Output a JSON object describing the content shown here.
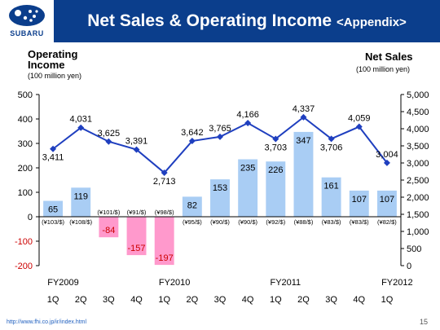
{
  "header": {
    "logo_text": "SUBARU",
    "title": "Net Sales & Operating Income",
    "title_suffix": "<Appendix>",
    "colors": {
      "title_bar": "#0b3e8c",
      "logo": "#0b3e8c"
    }
  },
  "left_axis": {
    "title": "Operating Income",
    "unit": "(100 million yen)"
  },
  "right_axis": {
    "title": "Net Sales",
    "unit": "(100 million yen)"
  },
  "footer": {
    "url": "http://www.fhi.co.jp/ir/index.html",
    "page": "15"
  },
  "chart_data": {
    "type": "bar",
    "categories": [
      "1Q",
      "2Q",
      "3Q",
      "4Q",
      "1Q",
      "2Q",
      "3Q",
      "4Q",
      "1Q",
      "2Q",
      "3Q",
      "4Q",
      "1Q"
    ],
    "fiscal_years": [
      {
        "label": "FY2009",
        "start_index": 0
      },
      {
        "label": "FY2010",
        "start_index": 4
      },
      {
        "label": "FY2011",
        "start_index": 8
      },
      {
        "label": "FY2012",
        "start_index": 12
      }
    ],
    "exchange_rates": [
      "(¥103/$)",
      "(¥108/$)",
      "(¥101/$)",
      "(¥91/$)",
      "(¥98/$)",
      "(¥95/$)",
      "(¥90/$)",
      "(¥90/$)",
      "(¥92/$)",
      "(¥88/$)",
      "(¥83/$)",
      "(¥83/$)",
      "(¥82/$)"
    ],
    "series": [
      {
        "name": "Operating Income",
        "type": "bar",
        "axis": "left",
        "values": [
          65,
          119,
          -84,
          -157,
          -197,
          82,
          153,
          235,
          226,
          347,
          161,
          107,
          107
        ],
        "labels": [
          "65",
          "119",
          "-84",
          "-157",
          "-197",
          "82",
          "153",
          "235",
          "226",
          "347",
          "161",
          "107",
          "107"
        ]
      },
      {
        "name": "Net Sales",
        "type": "line",
        "axis": "right",
        "values": [
          3411,
          4031,
          3625,
          3391,
          2713,
          3642,
          3765,
          4166,
          3703,
          4337,
          3706,
          4059,
          3004
        ],
        "labels": [
          "3,411",
          "4,031",
          "3,625",
          "3,391",
          "2,713",
          "3,642",
          "3,765",
          "4,166",
          "3,703",
          "4,337",
          "3,706",
          "4,059",
          "3,004"
        ]
      }
    ],
    "ylim_left": [
      -200,
      500
    ],
    "yticks_left": [
      "500",
      "400",
      "300",
      "200",
      "100",
      "0",
      "-100",
      "-200"
    ],
    "ylim_right": [
      0,
      5000
    ],
    "yticks_right": [
      "5,000",
      "4,500",
      "4,000",
      "3,500",
      "3,000",
      "2,500",
      "2,000",
      "1,500",
      "1,000",
      "500",
      "0"
    ],
    "colors": {
      "bar_positive": "#a9cdf4",
      "bar_negative": "#ff99cc",
      "line": "#1f3fbf",
      "label_negative": "#cc0000"
    },
    "grid": false
  }
}
